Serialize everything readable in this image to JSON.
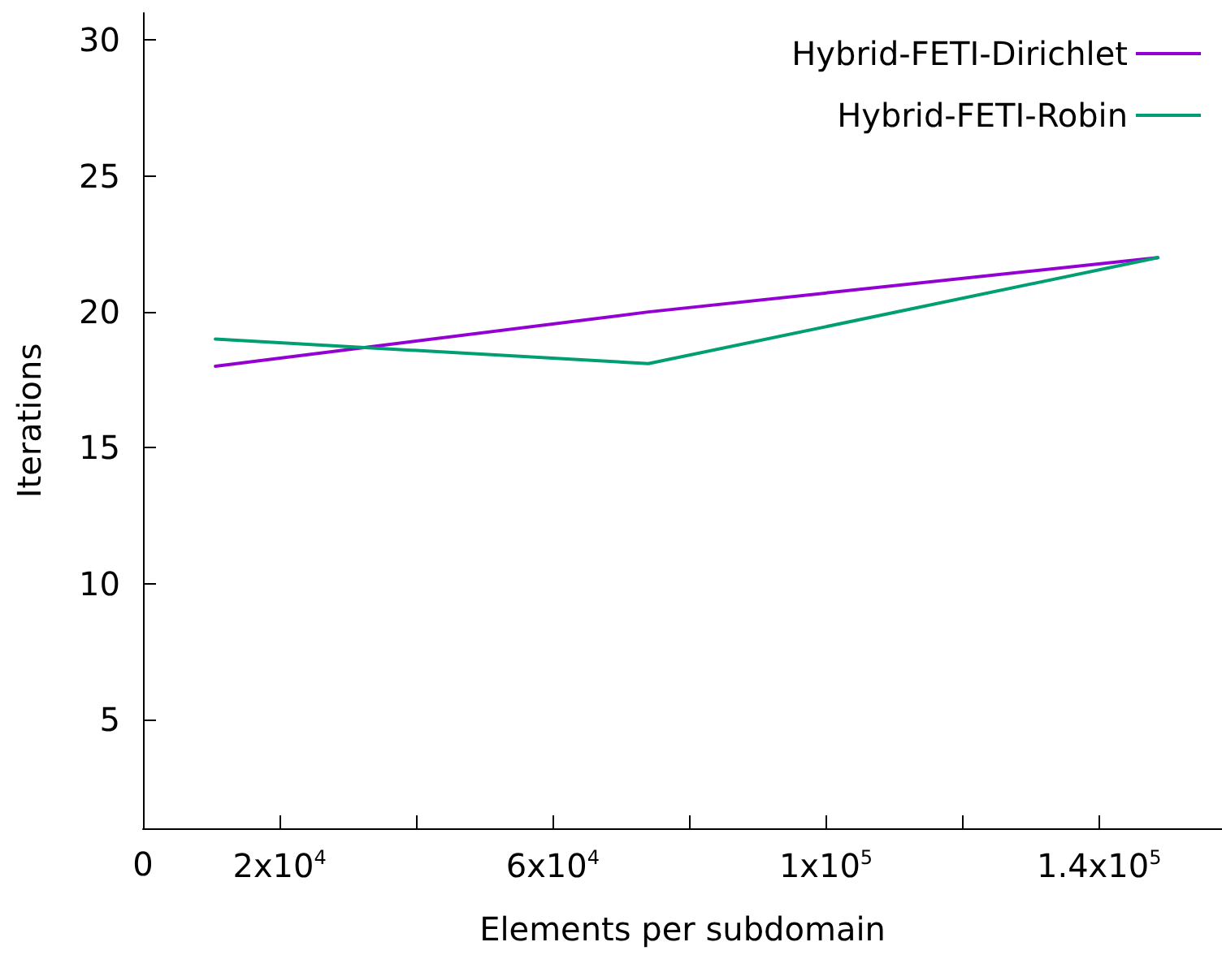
{
  "chart_data": {
    "type": "line",
    "xlabel": "Elements per subdomain",
    "ylabel": "Iterations",
    "xlim": [
      0,
      158000
    ],
    "xticks": [
      0,
      {
        "value": 20000,
        "label": "2x10$^{4}$"
      },
      {
        "value": 40000,
        "label": null
      },
      {
        "value": 60000,
        "label": "6x10$^{4}$"
      },
      {
        "value": 80000,
        "label": null
      },
      {
        "value": 100000,
        "label": "1x10$^{5}$"
      },
      {
        "value": 120000,
        "label": null
      },
      {
        "value": 140000,
        "label": "1.4x10$^{5}$"
      }
    ],
    "ylim": [
      1,
      31
    ],
    "yticks": [
      5,
      10,
      15,
      20,
      25,
      30
    ],
    "x": [
      10600,
      74000,
      148600
    ],
    "series": [
      {
        "name": "Hybrid-FETI-Dirichlet",
        "color": "#9400d3",
        "values": [
          18,
          20,
          22
        ]
      },
      {
        "name": "Hybrid-FETI-Robin",
        "color": "#009e73",
        "values": [
          19,
          18.1,
          22
        ]
      }
    ],
    "grid": false,
    "legend": "top right",
    "marker": "none",
    "line_style": "solid"
  }
}
